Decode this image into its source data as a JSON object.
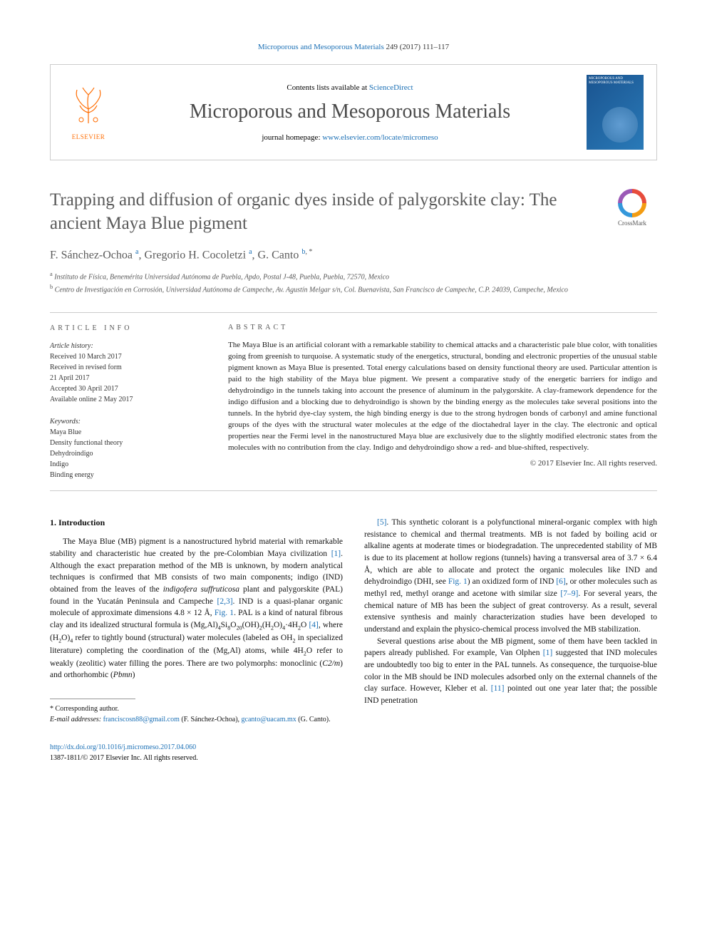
{
  "citation": {
    "journal": "Microporous and Mesoporous Materials",
    "volume_pages": "249 (2017) 111–117"
  },
  "banner": {
    "publisher": "ELSEVIER",
    "contents_prefix": "Contents lists available at ",
    "contents_link": "ScienceDirect",
    "journal_name": "Microporous and Mesoporous Materials",
    "homepage_prefix": "journal homepage: ",
    "homepage_url": "www.elsevier.com/locate/micromeso",
    "cover_title": "MICROPOROUS AND MESOPOROUS MATERIALS"
  },
  "article": {
    "title": "Trapping and diffusion of organic dyes inside of palygorskite clay: The ancient Maya Blue pigment",
    "crossmark_label": "CrossMark"
  },
  "authors": {
    "list_html": "F. Sánchez-Ochoa <sup><a>a</a></sup>, Gregorio H. Cocoletzi <sup><a>a</a></sup>, G. Canto <sup><a>b</a>, *</sup>"
  },
  "affiliations": {
    "a": "Instituto de Física, Benemérita Universidad Autónoma de Puebla, Apdo, Postal J-48, Puebla, Puebla, 72570, Mexico",
    "b": "Centro de Investigación en Corrosión, Universidad Autónoma de Campeche, Av. Agustín Melgar s/n, Col. Buenavista, San Francisco de Campeche, C.P. 24039, Campeche, Mexico"
  },
  "info": {
    "heading": "ARTICLE INFO",
    "history_label": "Article history:",
    "history": [
      "Received 10 March 2017",
      "Received in revised form",
      "21 April 2017",
      "Accepted 30 April 2017",
      "Available online 2 May 2017"
    ],
    "keywords_label": "Keywords:",
    "keywords": [
      "Maya Blue",
      "Density functional theory",
      "Dehydroindigo",
      "Indigo",
      "Binding energy"
    ]
  },
  "abstract": {
    "heading": "ABSTRACT",
    "text": "The Maya Blue is an artificial colorant with a remarkable stability to chemical attacks and a characteristic pale blue color, with tonalities going from greenish to turquoise. A systematic study of the energetics, structural, bonding and electronic properties of the unusual stable pigment known as Maya Blue is presented. Total energy calculations based on density functional theory are used. Particular attention is paid to the high stability of the Maya blue pigment. We present a comparative study of the energetic barriers for indigo and dehydroindigo in the tunnels taking into account the presence of aluminum in the palygorskite. A clay-framework dependence for the indigo diffusion and a blocking due to dehydroindigo is shown by the binding energy as the molecules take several positions into the tunnels. In the hybrid dye-clay system, the high binding energy is due to the strong hydrogen bonds of carbonyl and amine functional groups of the dyes with the structural water molecules at the edge of the dioctahedral layer in the clay. The electronic and optical properties near the Fermi level in the nanostructured Maya blue are exclusively due to the slightly modified electronic states from the molecules with no contribution from the clay. Indigo and dehydroindigo show a red- and blue-shifted, respectively.",
    "copyright": "© 2017 Elsevier Inc. All rights reserved."
  },
  "body": {
    "section1_heading": "1. Introduction",
    "col1_p1": "The Maya Blue (MB) pigment is a nanostructured hybrid material with remarkable stability and characteristic hue created by the pre-Colombian Maya civilization <a>[1]</a>. Although the exact preparation method of the MB is unknown, by modern analytical techniques is confirmed that MB consists of two main components; indigo (IND) obtained from the leaves of the <i>indigofera suffruticosa</i> plant and palygorskite (PAL) found in the Yucatán Peninsula and Campeche <a>[2,3]</a>. IND is a quasi-planar organic molecule of approximate dimensions 4.8 × 12 Å, <a>Fig. 1</a>. PAL is a kind of natural fibrous clay and its idealized structural formula is (Mg,Al)<sub>4</sub>Si<sub>8</sub>O<sub>20</sub>(OH)<sub>2</sub>(H<sub>2</sub>O)<sub>4</sub>·4H<sub>2</sub>O <a>[4]</a>, where (H<sub>2</sub>O)<sub>4</sub> refer to tightly bound (structural) water molecules (labeled as OH<sub>2</sub> in specialized literature) completing the coordination of the (Mg,Al) atoms, while 4H<sub>2</sub>O refer to weakly (zeolitic) water filling the pores. There are two polymorphs: monoclinic (<i>C2/m</i>) and orthorhombic (<i>Pbmn</i>)",
    "col2_p1": "<a>[5]</a>. This synthetic colorant is a polyfunctional mineral-organic complex with high resistance to chemical and thermal treatments. MB is not faded by boiling acid or alkaline agents at moderate times or biodegradation. The unprecedented stability of MB is due to its placement at hollow regions (tunnels) having a transversal area of 3.7 × 6.4 Å, which are able to allocate and protect the organic molecules like IND and dehydroindigo (DHI, see <a>Fig. 1</a>) an oxidized form of IND <a>[6]</a>, or other molecules such as methyl red, methyl orange and acetone with similar size <a>[7–9]</a>. For several years, the chemical nature of MB has been the subject of great controversy. As a result, several extensive synthesis and mainly characterization studies have been developed to understand and explain the physico-chemical process involved the MB stabilization.",
    "col2_p2": "Several questions arise about the MB pigment, some of them have been tackled in papers already published. For example, Van Olphen <a>[1]</a> suggested that IND molecules are undoubtedly too big to enter in the PAL tunnels. As consequence, the turquoise-blue color in the MB should be IND molecules adsorbed only on the external channels of the clay surface. However, Kleber et al. <a>[11]</a> pointed out one year later that; the possible IND penetration"
  },
  "footnotes": {
    "corr": "* Corresponding author.",
    "email_label": "E-mail addresses:",
    "email1": "franciscosn88@gmail.com",
    "email1_who": "(F. Sánchez-Ochoa),",
    "email2": "gcanto@uacam.mx",
    "email2_who": "(G. Canto)."
  },
  "footer": {
    "doi": "http://dx.doi.org/10.1016/j.micromeso.2017.04.060",
    "issn_line": "1387-1811/© 2017 Elsevier Inc. All rights reserved."
  },
  "colors": {
    "link": "#1a6fb5",
    "publisher": "#ff6c00",
    "title_grey": "#5a5a5a",
    "cover_bg": "#1a5490"
  }
}
